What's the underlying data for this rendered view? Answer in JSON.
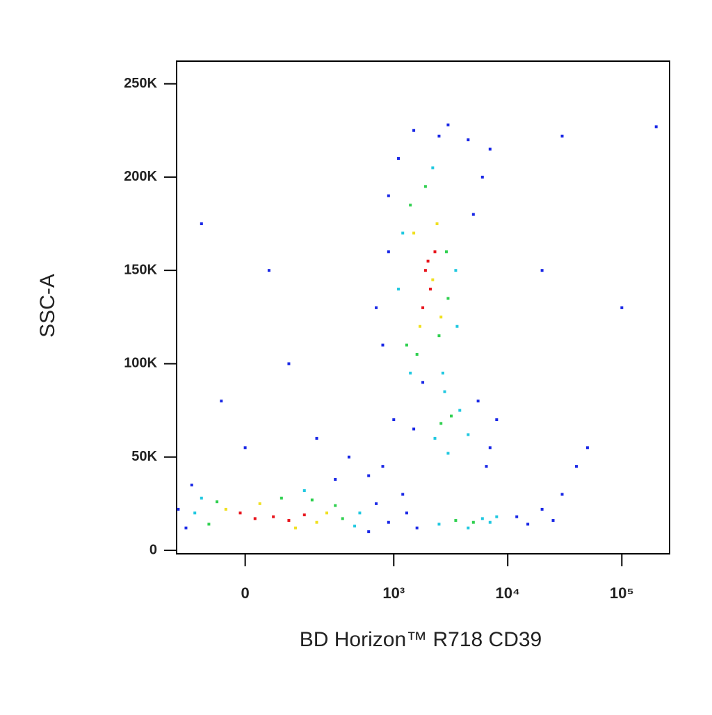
{
  "chart_data": {
    "type": "scatter",
    "xlabel": "BD Horizon™ R718 CD39",
    "ylabel": "SSC-A",
    "xscale": "biex",
    "xlim": [
      -184,
      262144
    ],
    "ylim": [
      -1860,
      262144
    ],
    "xticks": [
      0,
      {
        "value": 1000,
        "label": "10³"
      },
      {
        "value": 10000,
        "label": "10⁴"
      },
      {
        "value": 100000,
        "label": "10⁵"
      }
    ],
    "yticks": [
      0,
      {
        "value": 50000,
        "label": "50K"
      },
      {
        "value": 100000,
        "label": "100K"
      },
      {
        "value": 150000,
        "label": "150K"
      },
      {
        "value": 200000,
        "label": "200K"
      },
      {
        "value": 250000,
        "label": "250K"
      }
    ],
    "series": [
      {
        "color": "#1a28e6",
        "x": [
          -180,
          -150,
          700,
          900,
          600,
          -130,
          300,
          200,
          400,
          800,
          1000,
          -50,
          0,
          100,
          600,
          1200,
          700,
          800,
          900,
          5000,
          6000,
          4500,
          1500,
          3000,
          2500,
          7000,
          900,
          1100,
          1500,
          5500,
          7000,
          8000,
          1800,
          6500,
          1300,
          1600,
          12000,
          15000,
          20000,
          25000,
          30000,
          40000,
          50000,
          100000,
          200000,
          30000,
          -100,
          50,
          20000
        ],
        "values": [
          22000,
          12000,
          25000,
          15000,
          10000,
          35000,
          38000,
          60000,
          50000,
          45000,
          70000,
          80000,
          55000,
          100000,
          40000,
          30000,
          130000,
          110000,
          160000,
          180000,
          200000,
          220000,
          225000,
          228000,
          222000,
          215000,
          190000,
          210000,
          65000,
          80000,
          55000,
          70000,
          90000,
          45000,
          20000,
          12000,
          18000,
          14000,
          22000,
          16000,
          30000,
          45000,
          55000,
          130000,
          227000,
          222000,
          175000,
          150000,
          150000
        ]
      },
      {
        "color": "#20c8e0",
        "x": [
          -120,
          500,
          450,
          -100,
          150,
          1100,
          3500,
          1200,
          3600,
          2200,
          2700,
          1400,
          2300,
          3800,
          4500,
          2800,
          3000,
          2500,
          6000,
          7000,
          8000,
          4500
        ],
        "values": [
          20000,
          20000,
          13000,
          28000,
          32000,
          140000,
          150000,
          170000,
          120000,
          205000,
          95000,
          95000,
          60000,
          75000,
          62000,
          85000,
          52000,
          14000,
          17000,
          15000,
          18000,
          12000
        ]
      },
      {
        "color": "#30d050",
        "x": [
          -80,
          300,
          350,
          80,
          -60,
          180,
          1400,
          2900,
          1300,
          3000,
          1900,
          2500,
          1600,
          2600,
          3200,
          3500,
          5000
        ],
        "values": [
          14000,
          24000,
          17000,
          28000,
          26000,
          27000,
          185000,
          160000,
          110000,
          135000,
          195000,
          115000,
          105000,
          68000,
          72000,
          16000,
          15000
        ]
      },
      {
        "color": "#f0e020",
        "x": [
          -40,
          200,
          250,
          30,
          120,
          1500,
          2600,
          1700,
          2400,
          2200
        ],
        "values": [
          22000,
          15000,
          20000,
          25000,
          12000,
          170000,
          125000,
          120000,
          175000,
          145000
        ]
      },
      {
        "color": "#e8141c",
        "x": [
          20,
          60,
          100,
          150,
          -10,
          1900,
          2100,
          2300,
          1800,
          2000
        ],
        "values": [
          17000,
          18000,
          16000,
          19000,
          20000,
          150000,
          140000,
          160000,
          130000,
          155000
        ]
      }
    ]
  }
}
